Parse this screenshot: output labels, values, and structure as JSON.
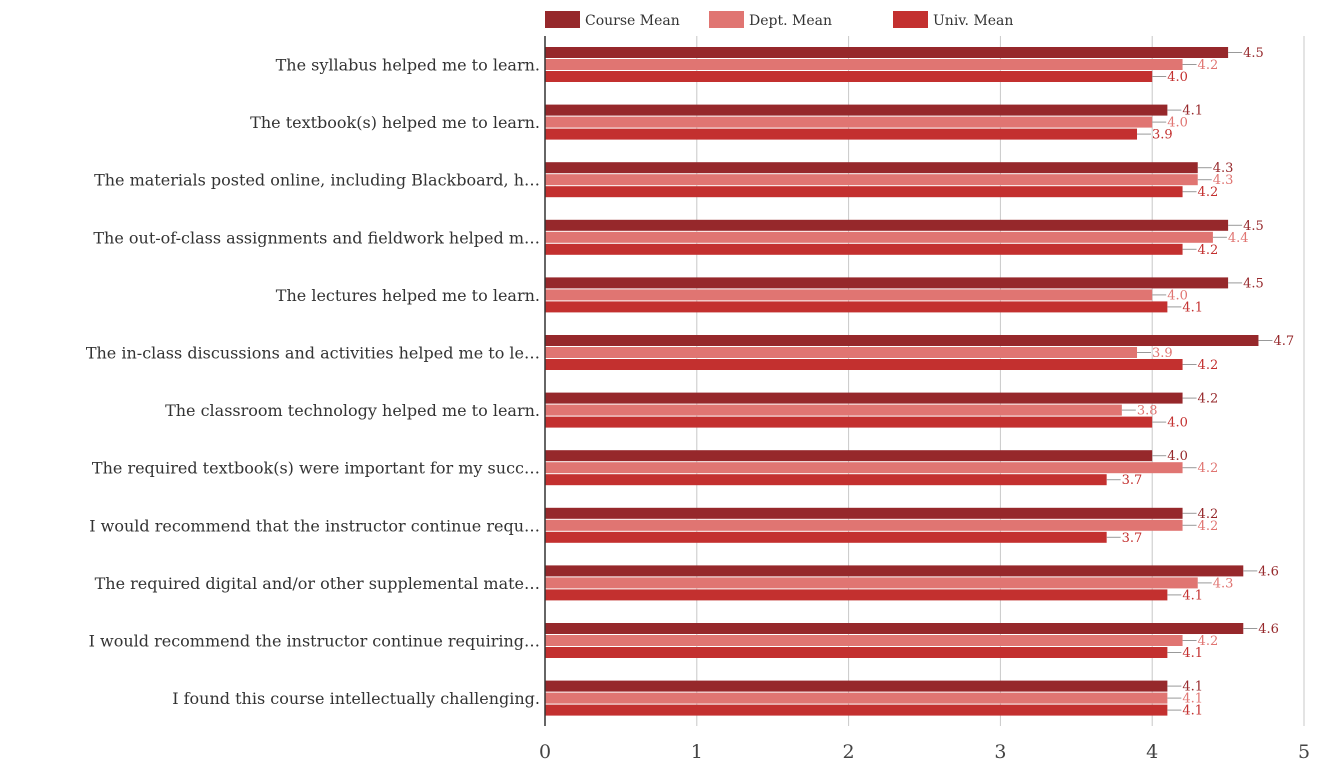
{
  "chart_data": {
    "type": "bar",
    "orientation": "horizontal",
    "title": "",
    "xlabel": "",
    "ylabel": "",
    "xlim": [
      0,
      5
    ],
    "ticks": [
      0,
      1,
      2,
      3,
      4,
      5
    ],
    "grid": true,
    "legend_position": "top",
    "categories": [
      "The syllabus helped me to learn.",
      "The textbook(s) helped me to learn.",
      "The materials posted online, including Blackboard, h…",
      "The out-of-class assignments and fieldwork helped m…",
      "The lectures helped me to learn.",
      "The in-class discussions and activities helped me to le…",
      "The classroom technology helped me to learn.",
      "The required textbook(s) were important for my succ…",
      "I would recommend that the instructor continue requ…",
      "The required digital and/or other supplemental mate…",
      "I would recommend the instructor continue requiring…",
      "I found this course intellectually challenging."
    ],
    "series": [
      {
        "name": "Course Mean",
        "color": "#96282b",
        "values": [
          4.5,
          4.1,
          4.3,
          4.5,
          4.5,
          4.7,
          4.2,
          4.0,
          4.2,
          4.6,
          4.6,
          4.1
        ],
        "labels": [
          "4.5",
          "4.1",
          "4.3",
          "4.5",
          "4.5",
          "4.7",
          "4.2",
          "4.0",
          "4.2",
          "4.6",
          "4.6",
          "4.1"
        ]
      },
      {
        "name": "Dept. Mean",
        "color": "#e07572",
        "values": [
          4.2,
          4.0,
          4.3,
          4.4,
          4.0,
          3.9,
          3.8,
          4.2,
          4.2,
          4.3,
          4.2,
          4.1
        ],
        "labels": [
          "4.2",
          "4.0",
          "4.3",
          "4.4",
          "4.0",
          "3.9",
          "3.8",
          "4.2",
          "4.2",
          "4.3",
          "4.2",
          "4.1"
        ]
      },
      {
        "name": "Univ. Mean",
        "color": "#c3302f",
        "values": [
          4.0,
          3.9,
          4.2,
          4.2,
          4.1,
          4.2,
          4.0,
          3.7,
          3.7,
          4.1,
          4.1,
          4.1
        ],
        "labels": [
          "4.0",
          "3.9",
          "4.2",
          "4.2",
          "4.1",
          "4.2",
          "4.0",
          "3.7",
          "3.7",
          "4.1",
          "4.1",
          "4.1"
        ]
      }
    ]
  }
}
